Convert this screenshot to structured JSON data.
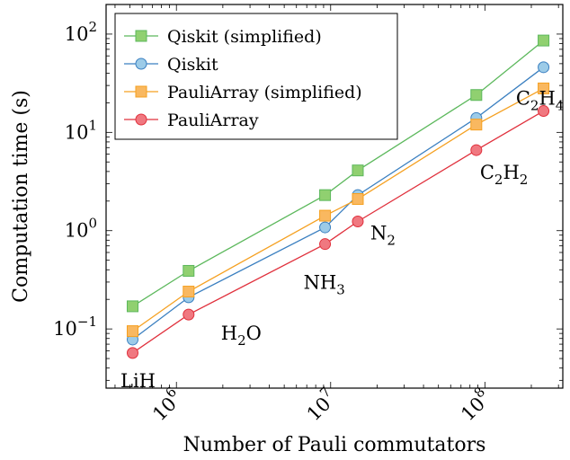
{
  "chart_data": {
    "type": "line",
    "xscale": "log",
    "yscale": "log",
    "xlabel": "Number of Pauli commutators",
    "ylabel": "Computation time (s)",
    "xlim": [
      350000,
      320000000
    ],
    "ylim": [
      0.025,
      200
    ],
    "x_ticks": [
      {
        "value": 1000000,
        "base": "10",
        "exp": "6"
      },
      {
        "value": 10000000,
        "base": "10",
        "exp": "7"
      },
      {
        "value": 100000000,
        "base": "10",
        "exp": "8"
      }
    ],
    "y_ticks": [
      {
        "value": 0.1,
        "base": "10",
        "exp": "−1"
      },
      {
        "value": 1,
        "base": "10",
        "exp": "0"
      },
      {
        "value": 10,
        "base": "10",
        "exp": "1"
      },
      {
        "value": 100,
        "base": "10",
        "exp": "2"
      }
    ],
    "x": [
      520000,
      1200000,
      9200000,
      15000000,
      88000000,
      240000000
    ],
    "series": [
      {
        "name": "Qiskit (simplified)",
        "color": "#5cb85c",
        "fill": "#90d070",
        "marker": "square",
        "values": [
          0.17,
          0.39,
          2.3,
          4.1,
          24,
          86
        ]
      },
      {
        "name": "Qiskit",
        "color": "#3a7fc0",
        "fill": "#9ccbe8",
        "marker": "circle",
        "values": [
          0.078,
          0.21,
          1.08,
          2.3,
          14,
          46
        ]
      },
      {
        "name": "PauliArray (simplified)",
        "color": "#f5a020",
        "fill": "#f9b860",
        "marker": "square",
        "values": [
          0.095,
          0.24,
          1.42,
          2.1,
          12,
          28
        ]
      },
      {
        "name": "PauliArray",
        "color": "#e0303c",
        "fill": "#f07880",
        "marker": "circle",
        "values": [
          0.057,
          0.14,
          0.73,
          1.24,
          6.6,
          16.5
        ]
      }
    ],
    "annotations": [
      {
        "base": "LiH",
        "parts": [
          {
            "t": "LiH",
            "sub": false
          }
        ],
        "x": 520000,
        "y": 0.057
      },
      {
        "parts": [
          {
            "t": "H",
            "sub": false
          },
          {
            "t": "2",
            "sub": true
          },
          {
            "t": "O",
            "sub": false
          }
        ],
        "x": 1200000,
        "y": 0.14
      },
      {
        "parts": [
          {
            "t": "NH",
            "sub": false
          },
          {
            "t": "3",
            "sub": true
          }
        ],
        "x": 9200000,
        "y": 0.73
      },
      {
        "parts": [
          {
            "t": "N",
            "sub": false
          },
          {
            "t": "2",
            "sub": true
          }
        ],
        "x": 15000000,
        "y": 1.24
      },
      {
        "parts": [
          {
            "t": "C",
            "sub": false
          },
          {
            "t": "2",
            "sub": true
          },
          {
            "t": "H",
            "sub": false
          },
          {
            "t": "2",
            "sub": true
          }
        ],
        "x": 88000000,
        "y": 6.6
      },
      {
        "parts": [
          {
            "t": "C",
            "sub": false
          },
          {
            "t": "2",
            "sub": true
          },
          {
            "t": "H",
            "sub": false
          },
          {
            "t": "4",
            "sub": true
          }
        ],
        "x": 240000000,
        "y": 16.5
      }
    ],
    "legend": {
      "position": "top-left"
    },
    "grid": false
  }
}
